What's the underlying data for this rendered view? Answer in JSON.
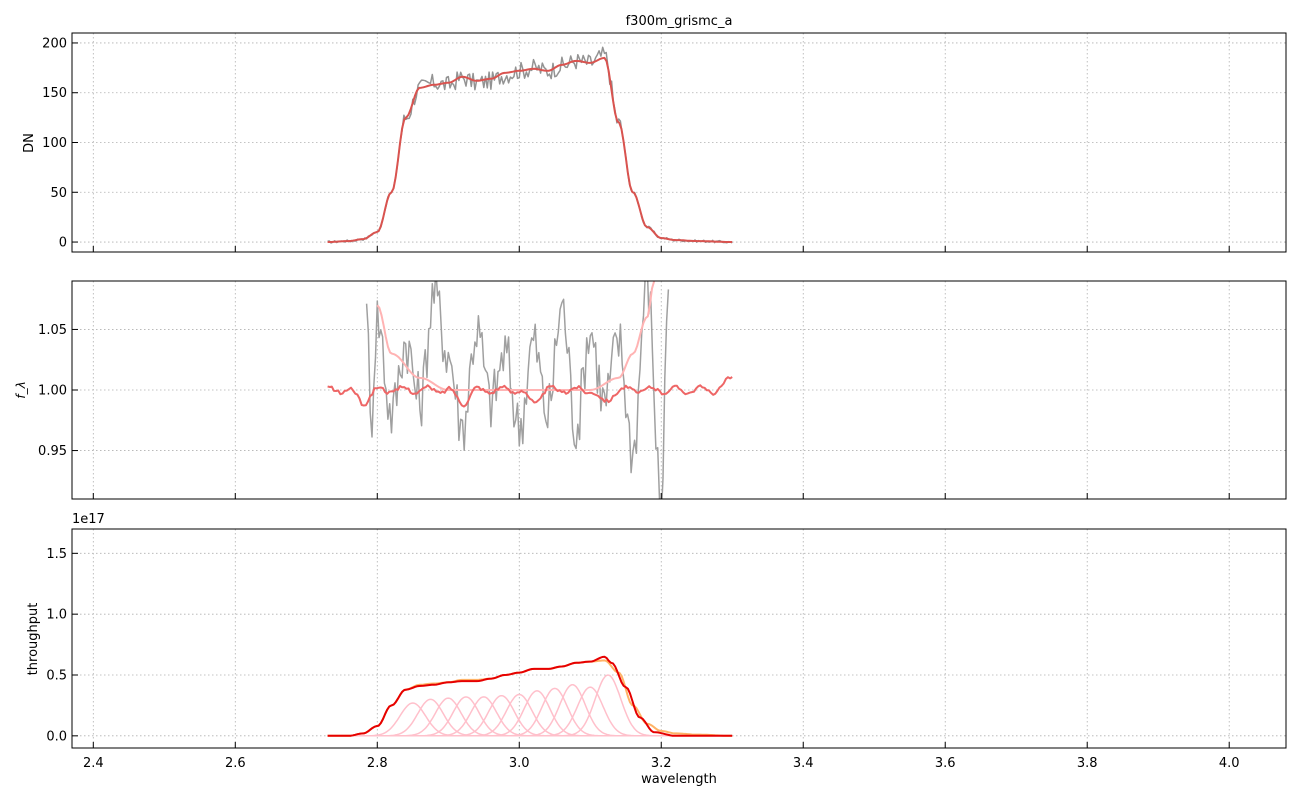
{
  "figure": {
    "title": "f300m_grismc_a",
    "xlabel": "wavelength",
    "xticks": [
      "2.4",
      "2.6",
      "2.8",
      "3.0",
      "3.2",
      "3.4",
      "3.6",
      "3.8",
      "4.0"
    ]
  },
  "chart_data": [
    {
      "type": "line",
      "title": "f300m_grismc_a",
      "xlabel": "",
      "ylabel": "DN",
      "xlim": [
        2.37,
        4.08
      ],
      "ylim": [
        -10,
        210
      ],
      "xticks": [
        2.4,
        2.6,
        2.8,
        3.0,
        3.2,
        3.4,
        3.6,
        3.8,
        4.0
      ],
      "yticks": [
        0,
        50,
        100,
        150,
        200
      ],
      "ytick_labels": [
        "0",
        "50",
        "100",
        "150",
        "200"
      ],
      "grid": true,
      "series": [
        {
          "color": "#808080",
          "style": "noisy",
          "x": [
            2.73,
            2.76,
            2.78,
            2.8,
            2.82,
            2.84,
            2.86,
            2.88,
            2.9,
            2.92,
            2.94,
            2.96,
            2.98,
            3.0,
            3.02,
            3.04,
            3.06,
            3.08,
            3.1,
            3.12,
            3.14,
            3.16,
            3.18,
            3.2,
            3.22,
            3.25,
            3.3
          ],
          "y": [
            0,
            1,
            3,
            10,
            50,
            125,
            155,
            160,
            158,
            165,
            160,
            162,
            168,
            172,
            175,
            172,
            177,
            182,
            180,
            188,
            120,
            50,
            15,
            4,
            2,
            1,
            0
          ]
        },
        {
          "color": "#d9534f",
          "style": "smooth",
          "x": [
            2.73,
            2.76,
            2.78,
            2.8,
            2.82,
            2.84,
            2.86,
            2.88,
            2.9,
            2.92,
            2.94,
            2.96,
            2.98,
            3.0,
            3.02,
            3.04,
            3.06,
            3.08,
            3.1,
            3.12,
            3.14,
            3.16,
            3.18,
            3.2,
            3.22,
            3.25,
            3.3
          ],
          "y": [
            0,
            1,
            3,
            10,
            50,
            125,
            155,
            158,
            160,
            166,
            162,
            164,
            170,
            172,
            174,
            172,
            178,
            182,
            180,
            185,
            120,
            50,
            15,
            4,
            2,
            1,
            0
          ]
        }
      ]
    },
    {
      "type": "line",
      "xlabel": "",
      "ylabel": "f_λ",
      "xlim": [
        2.37,
        4.08
      ],
      "ylim": [
        0.91,
        1.09
      ],
      "xticks": [
        2.4,
        2.6,
        2.8,
        3.0,
        3.2,
        3.4,
        3.6,
        3.8,
        4.0
      ],
      "yticks": [
        0.95,
        1.0,
        1.05
      ],
      "ytick_labels": [
        "0.95",
        "1.00",
        "1.05"
      ],
      "grid": true,
      "series": [
        {
          "color": "#a0a0a0",
          "style": "noisy",
          "x": [
            2.785,
            2.79,
            2.8,
            2.82,
            2.84,
            2.86,
            2.88,
            2.9,
            2.92,
            2.94,
            2.96,
            2.98,
            3.0,
            3.02,
            3.04,
            3.06,
            3.08,
            3.1,
            3.12,
            3.14,
            3.16,
            3.18,
            3.2,
            3.21
          ],
          "y": [
            1.09,
            0.97,
            1.06,
            0.98,
            1.04,
            0.99,
            1.08,
            1.03,
            0.97,
            1.05,
            0.99,
            1.03,
            0.97,
            1.04,
            0.98,
            1.07,
            0.97,
            1.05,
            0.99,
            1.04,
            0.95,
            1.09,
            0.91,
            1.09
          ]
        },
        {
          "color": "#ffb3b3",
          "style": "smooth",
          "x": [
            2.8,
            2.82,
            2.86,
            2.9,
            3.0,
            3.1,
            3.14,
            3.16,
            3.18,
            3.19
          ],
          "y": [
            1.07,
            1.03,
            1.01,
            1.0,
            1.0,
            1.0,
            1.01,
            1.03,
            1.06,
            1.09
          ]
        },
        {
          "color": "#ee6666",
          "style": "wiggle",
          "x": [
            2.73,
            2.76,
            2.78,
            2.8,
            2.82,
            2.84,
            2.86,
            2.88,
            2.9,
            2.92,
            2.94,
            2.96,
            2.98,
            3.0,
            3.02,
            3.04,
            3.06,
            3.08,
            3.1,
            3.12,
            3.14,
            3.16,
            3.18,
            3.2,
            3.22,
            3.25,
            3.28,
            3.3
          ],
          "y": [
            1.0,
            1.0,
            0.99,
            1.0,
            1.0,
            1.0,
            1.0,
            1.0,
            1.0,
            0.99,
            1.0,
            1.0,
            1.0,
            1.0,
            0.99,
            1.0,
            1.0,
            1.0,
            1.0,
            0.99,
            1.0,
            1.0,
            1.0,
            1.0,
            1.0,
            1.0,
            1.0,
            1.01
          ]
        }
      ]
    },
    {
      "type": "line",
      "xlabel": "wavelength",
      "ylabel": "throughput",
      "offset_label": "1e17",
      "xlim": [
        2.37,
        4.08
      ],
      "ylim": [
        -0.1,
        1.7
      ],
      "xticks": [
        2.4,
        2.6,
        2.8,
        3.0,
        3.2,
        3.4,
        3.6,
        3.8,
        4.0
      ],
      "yticks": [
        0.0,
        0.5,
        1.0,
        1.5
      ],
      "ytick_labels": [
        "0.0",
        "0.5",
        "1.0",
        "1.5"
      ],
      "grid": true,
      "series": [
        {
          "color": "#ffb366",
          "style": "smooth",
          "x": [
            2.73,
            2.76,
            2.78,
            2.8,
            2.82,
            2.84,
            2.86,
            2.88,
            2.9,
            2.92,
            2.94,
            2.96,
            2.98,
            3.0,
            3.02,
            3.04,
            3.06,
            3.08,
            3.1,
            3.12,
            3.14,
            3.16,
            3.18,
            3.2,
            3.22,
            3.25,
            3.3
          ],
          "y": [
            0.0,
            0.0,
            0.02,
            0.08,
            0.25,
            0.38,
            0.42,
            0.43,
            0.44,
            0.46,
            0.46,
            0.47,
            0.5,
            0.52,
            0.55,
            0.55,
            0.57,
            0.6,
            0.61,
            0.62,
            0.52,
            0.25,
            0.1,
            0.04,
            0.02,
            0.01,
            0.0
          ]
        },
        {
          "color": "#e60000",
          "style": "smooth",
          "x": [
            2.73,
            2.76,
            2.78,
            2.8,
            2.82,
            2.84,
            2.86,
            2.88,
            2.9,
            2.92,
            2.94,
            2.96,
            2.98,
            3.0,
            3.02,
            3.04,
            3.06,
            3.08,
            3.1,
            3.12,
            3.13,
            3.15,
            3.17,
            3.19,
            3.22,
            3.25,
            3.3
          ],
          "y": [
            0.0,
            0.0,
            0.02,
            0.08,
            0.25,
            0.38,
            0.41,
            0.42,
            0.44,
            0.45,
            0.45,
            0.47,
            0.5,
            0.52,
            0.55,
            0.55,
            0.57,
            0.6,
            0.61,
            0.65,
            0.6,
            0.4,
            0.15,
            0.03,
            0.0,
            0.0,
            0.0
          ]
        }
      ],
      "components": {
        "color": "#ffc0cb",
        "centers": [
          2.85,
          2.875,
          2.9,
          2.925,
          2.95,
          2.975,
          3.0,
          3.025,
          3.05,
          3.075,
          3.1,
          3.125
        ],
        "amplitudes": [
          0.27,
          0.3,
          0.31,
          0.32,
          0.32,
          0.33,
          0.34,
          0.37,
          0.39,
          0.42,
          0.4,
          0.5
        ],
        "width": 0.018
      }
    }
  ]
}
